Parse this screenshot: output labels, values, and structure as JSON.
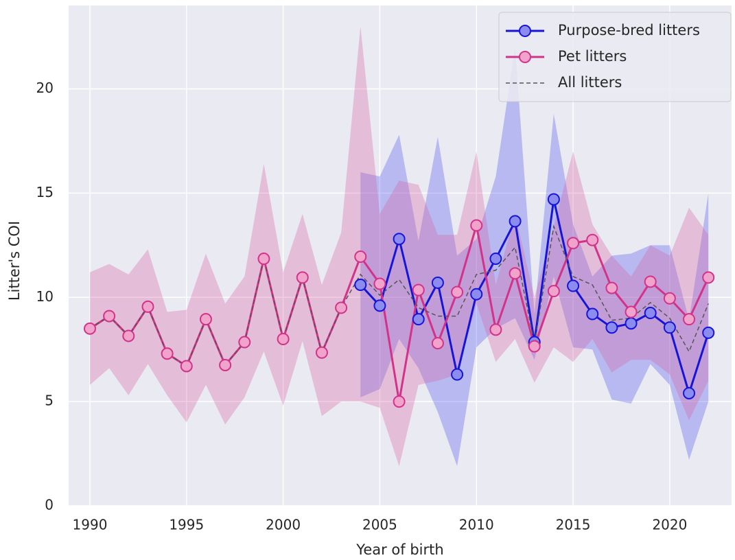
{
  "chart_data": {
    "type": "line",
    "x_label": "Year of birth",
    "y_label": "Litter's COI",
    "x": [
      1990,
      1991,
      1992,
      1993,
      1994,
      1995,
      1996,
      1997,
      1998,
      1999,
      2000,
      2001,
      2002,
      2003,
      2004,
      2005,
      2006,
      2007,
      2008,
      2009,
      2010,
      2011,
      2012,
      2013,
      2014,
      2015,
      2016,
      2017,
      2018,
      2019,
      2020,
      2021,
      2022
    ],
    "xlim": [
      1988.9,
      2023.2
    ],
    "ylim": [
      0,
      24
    ],
    "xticks": [
      1990,
      1995,
      2000,
      2005,
      2010,
      2015,
      2020
    ],
    "yticks": [
      0,
      5,
      10,
      15,
      20
    ],
    "grid": true,
    "legend": "upper right",
    "series": [
      {
        "name": "Purpose-bred litters",
        "color": "#1515d8",
        "marker_fill": "#8c8cf0",
        "band_color": "#4a4aef",
        "dash": false,
        "values": [
          null,
          null,
          null,
          null,
          null,
          null,
          null,
          null,
          null,
          null,
          null,
          null,
          null,
          null,
          10.6,
          9.6,
          12.8,
          8.95,
          10.7,
          6.3,
          10.15,
          11.85,
          13.65,
          7.85,
          14.7,
          10.55,
          9.2,
          8.55,
          8.75,
          9.25,
          8.55,
          5.4,
          8.3
        ],
        "lower": [
          null,
          null,
          null,
          null,
          null,
          null,
          null,
          null,
          null,
          null,
          null,
          null,
          null,
          null,
          5.2,
          5.6,
          8.0,
          6.6,
          4.5,
          1.9,
          7.6,
          8.5,
          9.0,
          7.0,
          11.0,
          7.6,
          7.5,
          5.1,
          4.9,
          6.8,
          5.8,
          2.2,
          5.0
        ],
        "upper": [
          null,
          null,
          null,
          null,
          null,
          null,
          null,
          null,
          null,
          null,
          null,
          null,
          null,
          null,
          16.0,
          15.8,
          17.8,
          12.7,
          17.7,
          12.0,
          12.8,
          15.8,
          22.0,
          9.2,
          18.8,
          13.5,
          11.0,
          12.0,
          12.1,
          12.5,
          12.5,
          8.9,
          15.0
        ]
      },
      {
        "name": "Pet litters",
        "color": "#d2338a",
        "marker_fill": "#f2a3cb",
        "band_color": "#d65a9a",
        "dash": false,
        "values": [
          8.5,
          9.1,
          8.15,
          9.55,
          7.3,
          6.7,
          8.95,
          6.75,
          7.85,
          11.85,
          8.0,
          10.95,
          7.35,
          9.5,
          11.95,
          10.65,
          5.0,
          10.35,
          7.8,
          10.25,
          13.45,
          8.45,
          11.15,
          7.65,
          10.3,
          12.6,
          12.75,
          10.45,
          9.3,
          10.75,
          9.95,
          8.95,
          10.95
        ],
        "lower": [
          5.8,
          6.6,
          5.3,
          6.8,
          5.3,
          4.0,
          5.8,
          3.9,
          5.2,
          7.4,
          4.8,
          7.9,
          4.3,
          5.0,
          5.0,
          4.7,
          1.9,
          5.8,
          6.0,
          6.3,
          9.7,
          6.9,
          8.0,
          5.9,
          7.6,
          6.9,
          8.0,
          6.4,
          7.0,
          7.0,
          6.3,
          4.1,
          6.0
        ],
        "upper": [
          11.2,
          11.6,
          11.1,
          12.3,
          9.3,
          9.4,
          12.1,
          9.7,
          11.0,
          16.4,
          11.2,
          14.0,
          10.6,
          13.1,
          23.0,
          14.0,
          15.6,
          15.4,
          13.0,
          13.0,
          17.0,
          10.6,
          14.0,
          10.0,
          13.4,
          17.0,
          13.5,
          12.0,
          11.0,
          12.5,
          12.0,
          14.3,
          13.0
        ]
      },
      {
        "name": "All litters",
        "color": "#555555",
        "dash": true,
        "values": [
          8.5,
          9.1,
          8.15,
          9.55,
          7.3,
          6.7,
          8.95,
          6.75,
          7.85,
          11.85,
          8.0,
          10.95,
          7.35,
          9.5,
          11.1,
          10.1,
          10.85,
          9.5,
          9.1,
          9.1,
          11.1,
          11.3,
          12.4,
          7.8,
          13.4,
          11.0,
          10.6,
          8.9,
          9.0,
          9.75,
          9.0,
          7.4,
          9.7
        ]
      }
    ]
  }
}
